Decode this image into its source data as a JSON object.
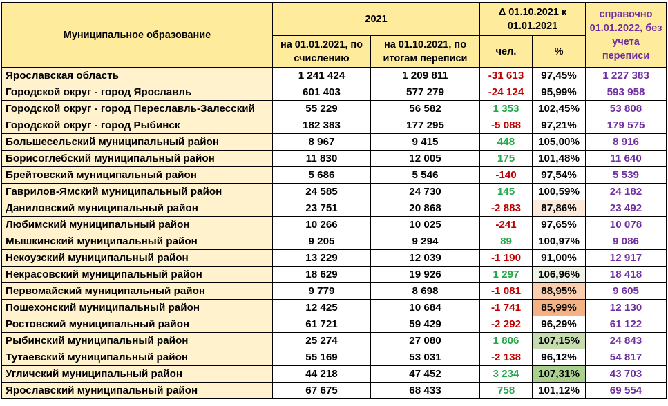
{
  "header": {
    "municipality": "Муниципальное образование",
    "year": "2021",
    "delta": "Δ 01.10.2021 к 01.01.2021",
    "reference": "справочно 01.01.2022, без учета переписи",
    "col_calc": "на 01.01.2021, по счислению",
    "col_census": "на 01.10.2021, по итогам переписи",
    "col_people": "чел.",
    "col_pct": "%"
  },
  "colors": {
    "header_bg": "#ffeb9c",
    "name_bg": "#fff2cc",
    "negative": "#c00000",
    "positive": "#22a84a",
    "reference": "#7030a0"
  },
  "rows": [
    {
      "name": "Ярославская область",
      "calc": "1 241 424",
      "census": "1 209 811",
      "delta": "-31 613",
      "sign": "neg",
      "pct": "97,45%",
      "pct_bg": "#ffffff",
      "ref": "1 227 383"
    },
    {
      "name": "Городской округ - город Ярославль",
      "calc": "601 403",
      "census": "577 279",
      "delta": "-24 124",
      "sign": "neg",
      "pct": "95,99%",
      "pct_bg": "#ffffff",
      "ref": "593 958"
    },
    {
      "name": "Городской округ - город Переславль-Залесский",
      "calc": "55 229",
      "census": "56 582",
      "delta": "1 353",
      "sign": "pos",
      "pct": "102,45%",
      "pct_bg": "#ffffff",
      "ref": "53 808"
    },
    {
      "name": "Городской округ - город Рыбинск",
      "calc": "182 383",
      "census": "177 295",
      "delta": "-5 088",
      "sign": "neg",
      "pct": "97,21%",
      "pct_bg": "#ffffff",
      "ref": "179 575"
    },
    {
      "name": "Большесельский муниципальный район",
      "calc": "8 967",
      "census": "9 415",
      "delta": "448",
      "sign": "pos",
      "pct": "105,00%",
      "pct_bg": "#ffffff",
      "ref": "8 916"
    },
    {
      "name": "Борисоглебский муниципальный район",
      "calc": "11 830",
      "census": "12 005",
      "delta": "175",
      "sign": "pos",
      "pct": "101,48%",
      "pct_bg": "#ffffff",
      "ref": "11 640"
    },
    {
      "name": "Брейтовский муниципальный район",
      "calc": "5 686",
      "census": "5 546",
      "delta": "-140",
      "sign": "neg",
      "pct": "97,54%",
      "pct_bg": "#ffffff",
      "ref": "5 539"
    },
    {
      "name": "Гаврилов-Ямский муниципальный район",
      "calc": "24 585",
      "census": "24 730",
      "delta": "145",
      "sign": "pos",
      "pct": "100,59%",
      "pct_bg": "#ffffff",
      "ref": "24 182"
    },
    {
      "name": "Даниловский муниципальный район",
      "calc": "23 751",
      "census": "20 868",
      "delta": "-2 883",
      "sign": "neg",
      "pct": "87,86%",
      "pct_bg": "#fde9d9",
      "ref": "23 492"
    },
    {
      "name": "Любимский муниципальный район",
      "calc": "10 266",
      "census": "10 025",
      "delta": "-241",
      "sign": "neg",
      "pct": "97,65%",
      "pct_bg": "#ffffff",
      "ref": "10 078"
    },
    {
      "name": "Мышкинский муниципальный район",
      "calc": "9 205",
      "census": "9 294",
      "delta": "89",
      "sign": "pos",
      "pct": "100,97%",
      "pct_bg": "#ffffff",
      "ref": "9 086"
    },
    {
      "name": "Некоузский муниципальный район",
      "calc": "13 229",
      "census": "12 039",
      "delta": "-1 190",
      "sign": "neg",
      "pct": "91,00%",
      "pct_bg": "#ffffff",
      "ref": "12 917"
    },
    {
      "name": "Некрасовский муниципальный район",
      "calc": "18 629",
      "census": "19 926",
      "delta": "1 297",
      "sign": "pos",
      "pct": "106,96%",
      "pct_bg": "#eef3e6",
      "ref": "18 418"
    },
    {
      "name": "Первомайский муниципальный район",
      "calc": "9 779",
      "census": "8 698",
      "delta": "-1 081",
      "sign": "neg",
      "pct": "88,95%",
      "pct_bg": "#f9cfb0",
      "ref": "9 605"
    },
    {
      "name": "Пошехонский муниципальный район",
      "calc": "12 425",
      "census": "10 684",
      "delta": "-1 741",
      "sign": "neg",
      "pct": "85,99%",
      "pct_bg": "#f4b183",
      "ref": "12 130"
    },
    {
      "name": "Ростовский муниципальный район",
      "calc": "61 721",
      "census": "59 429",
      "delta": "-2 292",
      "sign": "neg",
      "pct": "96,29%",
      "pct_bg": "#ffffff",
      "ref": "61 122"
    },
    {
      "name": "Рыбинский муниципальный район",
      "calc": "25 274",
      "census": "27 080",
      "delta": "1 806",
      "sign": "pos",
      "pct": "107,15%",
      "pct_bg": "#c6dcb0",
      "ref": "24 843"
    },
    {
      "name": "Тутаевский муниципальный район",
      "calc": "55 169",
      "census": "53 031",
      "delta": "-2 138",
      "sign": "neg",
      "pct": "96,12%",
      "pct_bg": "#ffffff",
      "ref": "54 817"
    },
    {
      "name": "Угличский муниципальный район",
      "calc": "44 218",
      "census": "47 452",
      "delta": "3 234",
      "sign": "pos",
      "pct": "107,31%",
      "pct_bg": "#a9d08e",
      "ref": "43 703"
    },
    {
      "name": "Ярославский муниципальный район",
      "calc": "67 675",
      "census": "68 433",
      "delta": "758",
      "sign": "pos",
      "pct": "101,12%",
      "pct_bg": "#ffffff",
      "ref": "69 554"
    }
  ]
}
